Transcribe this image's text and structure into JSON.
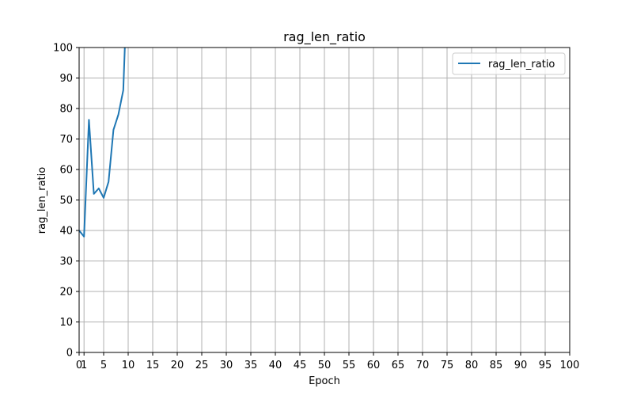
{
  "chart_data": {
    "type": "line",
    "title": "rag_len_ratio",
    "xlabel": "Epoch",
    "ylabel": "rag_len_ratio",
    "xlim": [
      0,
      100
    ],
    "ylim": [
      0,
      100
    ],
    "x_ticks": [
      0,
      5,
      10,
      15,
      20,
      25,
      30,
      35,
      40,
      45,
      50,
      55,
      60,
      65,
      70,
      75,
      80,
      85,
      90,
      95,
      100
    ],
    "x_tick_labels": [
      "0",
      "5",
      "10",
      "15",
      "20",
      "25",
      "30",
      "35",
      "40",
      "45",
      "50",
      "55",
      "60",
      "65",
      "70",
      "75",
      "80",
      "85",
      "90",
      "95",
      "100"
    ],
    "extra_x_ticks": [
      1
    ],
    "extra_x_tick_labels": [
      "1"
    ],
    "y_ticks": [
      0,
      10,
      20,
      30,
      40,
      50,
      60,
      70,
      80,
      90,
      100
    ],
    "y_tick_labels": [
      "0",
      "10",
      "20",
      "30",
      "40",
      "50",
      "60",
      "70",
      "80",
      "90",
      "100"
    ],
    "grid": true,
    "legend_position": "top-right",
    "series": [
      {
        "name": "rag_len_ratio",
        "color": "#1f77b4",
        "x": [
          0,
          1,
          2,
          3,
          4,
          5,
          6,
          7,
          8,
          9,
          10
        ],
        "y": [
          40,
          38,
          76.3,
          52,
          53.8,
          50.7,
          56,
          73,
          78,
          86,
          130
        ]
      }
    ]
  }
}
